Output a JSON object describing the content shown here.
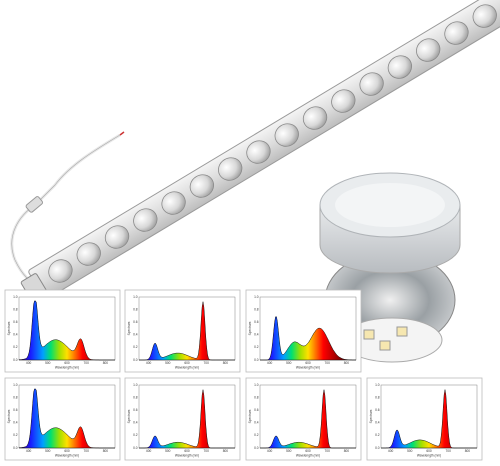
{
  "spectrum_axes": {
    "ylabel": "Spectrum",
    "xlabel": "Wavelength (nm)",
    "yticks": [
      "0.0",
      "0.2",
      "0.4",
      "0.6",
      "0.8",
      "1.0"
    ],
    "xticks": [
      "400",
      "500",
      "600",
      "700",
      "800"
    ]
  }
}
